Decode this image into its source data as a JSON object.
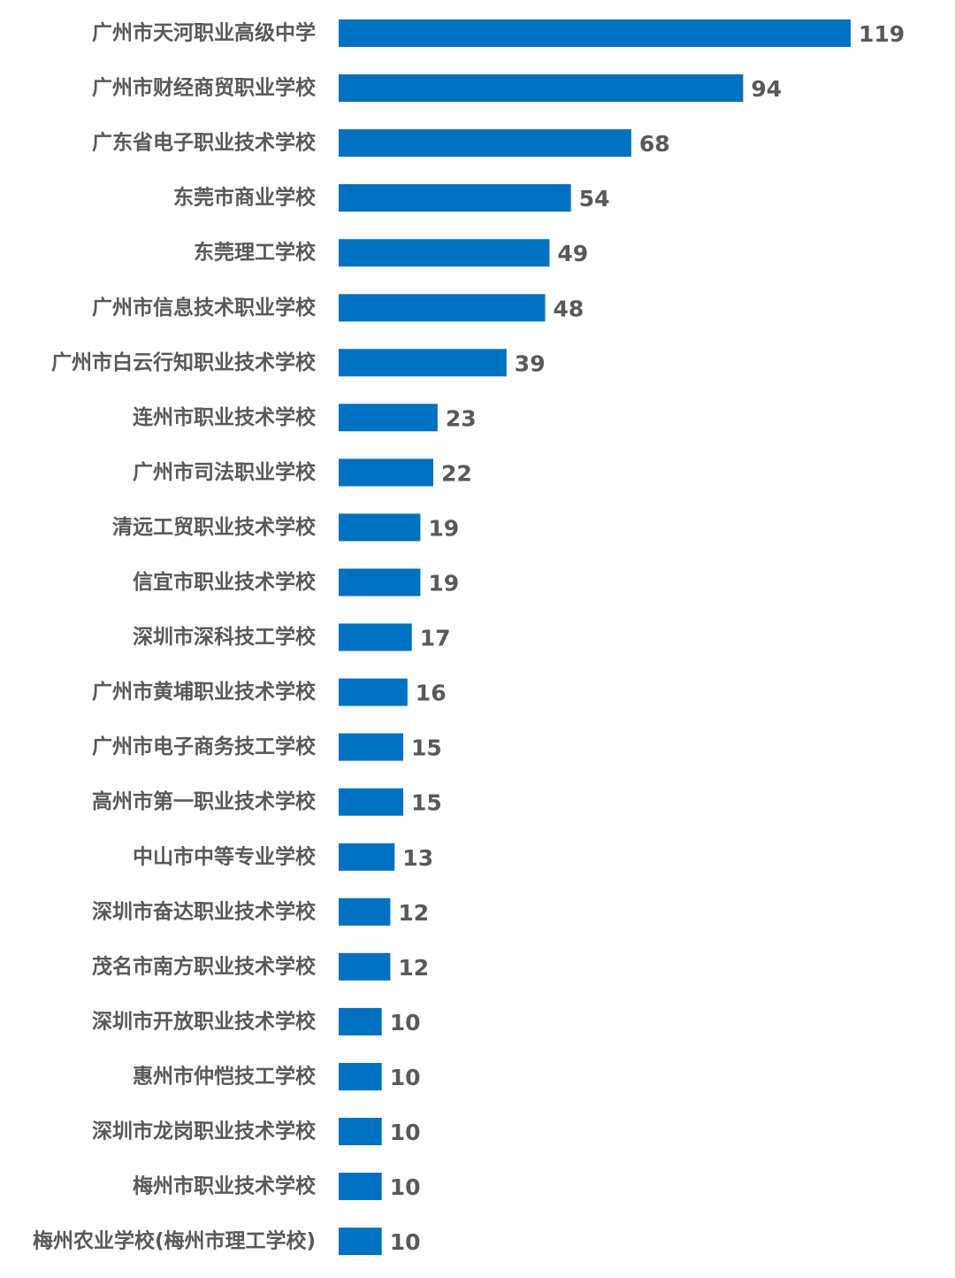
{
  "chart_data": {
    "type": "bar",
    "orientation": "horizontal",
    "categories": [
      "广州市天河职业高级中学",
      "广州市财经商贸职业学校",
      "广东省电子职业技术学校",
      "东莞市商业学校",
      "东莞理工学校",
      "广州市信息技术职业学校",
      "广州市白云行知职业技术学校",
      "连州市职业技术学校",
      "广州市司法职业学校",
      "清远工贸职业技术学校",
      "信宜市职业技术学校",
      "深圳市深科技工学校",
      "广州市黄埔职业技术学校",
      "广州市电子商务技工学校",
      "高州市第一职业技术学校",
      "中山市中等专业学校",
      "深圳市奋达职业技术学校",
      "茂名市南方职业技术学校",
      "深圳市开放职业技术学校",
      "惠州市仲恺技工学校",
      "深圳市龙岗职业技术学校",
      "梅州市职业技术学校",
      "梅州农业学校(梅州市理工学校)"
    ],
    "values": [
      119,
      94,
      68,
      54,
      49,
      48,
      39,
      23,
      22,
      19,
      19,
      17,
      16,
      15,
      15,
      13,
      12,
      12,
      10,
      10,
      10,
      10,
      10
    ],
    "bar_color": "#0070C0",
    "label_color": "#595959",
    "title": "",
    "xlabel": "",
    "ylabel": "",
    "xlim": [
      0,
      119
    ],
    "grid": false,
    "legend": "none"
  }
}
